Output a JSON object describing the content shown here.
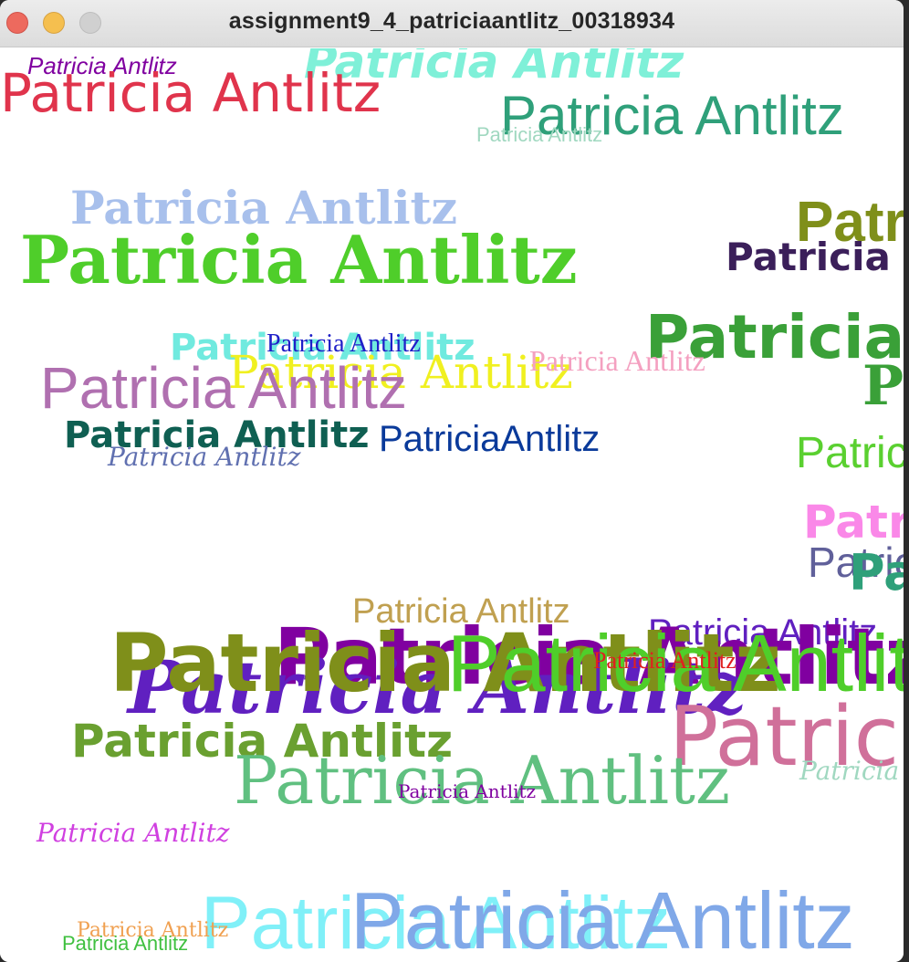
{
  "window": {
    "title": "assignment9_4_patriciaantlitz_00318934",
    "controls": [
      "close-button",
      "minimize-button",
      "zoom-button"
    ]
  },
  "canvas": {
    "text": "Patricia Antlitz",
    "text_nospace": "PatriciaAntlitz",
    "colors": {
      "crimson": "#e0344c",
      "aqua": "#7ff0d8",
      "teal_green": "#2fa07a",
      "lilac": "#a8c0ec",
      "grass": "#4fce2a",
      "olive": "#7f8f1a",
      "plum_dark": "#3b1f5a",
      "forest": "#3aa038",
      "cyan": "#70eadf",
      "blue_dark": "#2020c8",
      "yellow": "#f0f020",
      "pink_light": "#f4a0c0",
      "mauve": "#b070b0",
      "teal_dark": "#0f5f52",
      "navy": "#0a3a9a",
      "steel": "#6070b0",
      "lime": "#5ad030",
      "pink_bright": "#fa88e8",
      "slate": "#60609a",
      "gold": "#c0a050",
      "purple": "#6020c0",
      "violet": "#8000a0",
      "rose": "#d0709a",
      "sage": "#60c080",
      "magenta": "#d040e0",
      "sky": "#80f0f8",
      "cornflower": "#80a8e8",
      "orange": "#f0a050",
      "green": "#40c040",
      "red": "#e02020",
      "mint": "#a0d8c0",
      "moss": "#6aa030"
    }
  }
}
